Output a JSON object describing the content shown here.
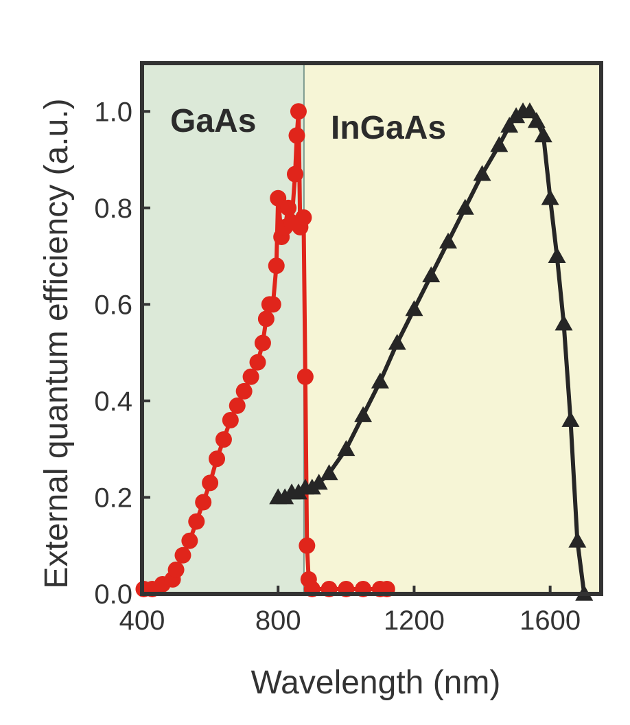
{
  "chart_data": {
    "type": "scatter",
    "xlabel": "Wavelength (nm)",
    "ylabel": "External quantum efficiency (a.u.)",
    "xlim": [
      400,
      1750
    ],
    "ylim": [
      0,
      1.1
    ],
    "xticks": [
      "400",
      "800",
      "1200",
      "1600"
    ],
    "yticks": [
      "0.0",
      "0.2",
      "0.4",
      "0.6",
      "0.8",
      "1.0"
    ],
    "grid": false,
    "regions": [
      {
        "label": "GaAs",
        "x_range": [
          400,
          876
        ],
        "color": "#dce9d8"
      },
      {
        "label": "InGaAs",
        "x_range": [
          876,
          1750
        ],
        "color": "#f6f5d6"
      }
    ],
    "series": [
      {
        "marker": "circle",
        "color": "#e0251b",
        "x": [
          405,
          430,
          460,
          490,
          500,
          520,
          540,
          560,
          580,
          600,
          620,
          640,
          660,
          680,
          700,
          720,
          740,
          755,
          765,
          775,
          785,
          795,
          800,
          810,
          820,
          830,
          840,
          850,
          855,
          860,
          865,
          875,
          880,
          885,
          890,
          900,
          950,
          1000,
          1050,
          1100,
          1120
        ],
        "y": [
          0.01,
          0.01,
          0.02,
          0.03,
          0.05,
          0.08,
          0.11,
          0.15,
          0.19,
          0.23,
          0.28,
          0.32,
          0.36,
          0.39,
          0.42,
          0.45,
          0.48,
          0.52,
          0.57,
          0.6,
          0.6,
          0.68,
          0.82,
          0.74,
          0.76,
          0.8,
          0.77,
          0.87,
          0.95,
          1.0,
          0.76,
          0.78,
          0.45,
          0.1,
          0.03,
          0.01,
          0.01,
          0.01,
          0.01,
          0.01,
          0.01
        ]
      },
      {
        "marker": "triangle",
        "color": "#262626",
        "x": [
          800,
          820,
          840,
          860,
          880,
          900,
          920,
          950,
          1000,
          1050,
          1100,
          1150,
          1200,
          1250,
          1300,
          1350,
          1400,
          1450,
          1480,
          1500,
          1520,
          1540,
          1560,
          1580,
          1600,
          1620,
          1640,
          1660,
          1680,
          1700
        ],
        "y": [
          0.2,
          0.2,
          0.21,
          0.21,
          0.22,
          0.22,
          0.23,
          0.25,
          0.3,
          0.37,
          0.44,
          0.52,
          0.59,
          0.66,
          0.73,
          0.8,
          0.87,
          0.93,
          0.97,
          0.99,
          1.0,
          1.0,
          0.98,
          0.95,
          0.82,
          0.7,
          0.56,
          0.36,
          0.11,
          0.0
        ]
      }
    ]
  }
}
